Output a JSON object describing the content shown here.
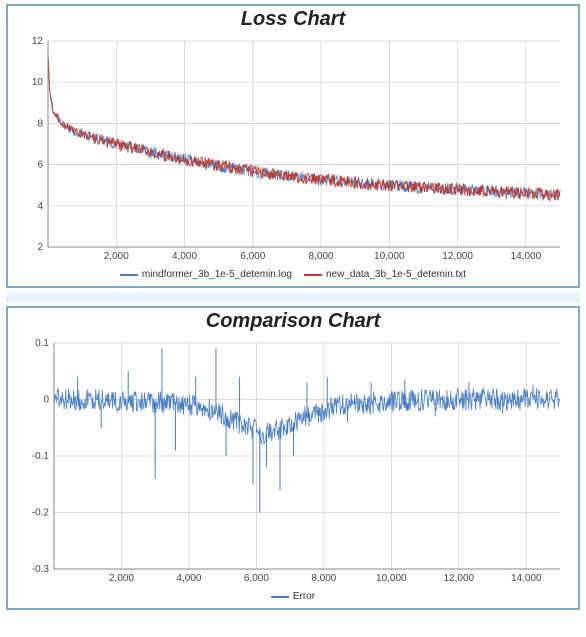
{
  "loss_chart": {
    "type": "line",
    "title": "Loss Chart",
    "title_fontsize": 20,
    "background_color": "#ffffff",
    "border_color": "#7fa8c9",
    "axis_color": "#888888",
    "grid_color": "#cccccc",
    "tick_fontsize": 10,
    "tick_color": "#444444",
    "xlim": [
      0,
      15000
    ],
    "ylim": [
      2,
      12
    ],
    "xtick_step": 2000,
    "ytick_step": 2,
    "xticks": [
      2000,
      4000,
      6000,
      8000,
      10000,
      12000,
      14000
    ],
    "yticks": [
      2,
      4,
      6,
      8,
      10,
      12
    ],
    "line_width": 0.8,
    "noise_amplitude": 0.3,
    "series": [
      {
        "name": "mindformer_3b_1e-5_detemin.log",
        "color": "#4a7fc2",
        "curve": [
          [
            0,
            11.5
          ],
          [
            50,
            9.6
          ],
          [
            150,
            8.6
          ],
          [
            400,
            8.0
          ],
          [
            800,
            7.6
          ],
          [
            1500,
            7.2
          ],
          [
            2500,
            6.8
          ],
          [
            3500,
            6.4
          ],
          [
            4500,
            6.1
          ],
          [
            5500,
            5.8
          ],
          [
            6500,
            5.55
          ],
          [
            7500,
            5.35
          ],
          [
            8500,
            5.2
          ],
          [
            9500,
            5.05
          ],
          [
            10500,
            4.95
          ],
          [
            11500,
            4.85
          ],
          [
            12500,
            4.75
          ],
          [
            13500,
            4.65
          ],
          [
            14500,
            4.55
          ],
          [
            15000,
            4.5
          ]
        ]
      },
      {
        "name": "new_data_3b_1e-5_detemin.txt",
        "color": "#c0392b",
        "curve": [
          [
            0,
            11.5
          ],
          [
            50,
            9.6
          ],
          [
            150,
            8.6
          ],
          [
            400,
            8.0
          ],
          [
            800,
            7.6
          ],
          [
            1500,
            7.2
          ],
          [
            2500,
            6.8
          ],
          [
            3500,
            6.4
          ],
          [
            4500,
            6.1
          ],
          [
            5500,
            5.8
          ],
          [
            6500,
            5.55
          ],
          [
            7500,
            5.35
          ],
          [
            8500,
            5.2
          ],
          [
            9500,
            5.05
          ],
          [
            10500,
            4.95
          ],
          [
            11500,
            4.85
          ],
          [
            12500,
            4.75
          ],
          [
            13500,
            4.65
          ],
          [
            14500,
            4.55
          ],
          [
            15000,
            4.5
          ]
        ]
      }
    ]
  },
  "comparison_chart": {
    "type": "line",
    "title": "Comparison Chart",
    "title_fontsize": 20,
    "background_color": "#ffffff",
    "border_color": "#7fa8c9",
    "axis_color": "#888888",
    "grid_color": "#cccccc",
    "tick_fontsize": 10,
    "tick_color": "#444444",
    "xlim": [
      0,
      15000
    ],
    "ylim": [
      -0.3,
      0.1
    ],
    "xtick_step": 2000,
    "ytick_step": 0.1,
    "xticks": [
      2000,
      4000,
      6000,
      8000,
      10000,
      12000,
      14000
    ],
    "yticks": [
      -0.3,
      -0.2,
      -0.1,
      0,
      0.1
    ],
    "line_width": 0.8,
    "noise_amplitude": 0.02,
    "spike_amplitude": 0.07,
    "series": [
      {
        "name": "Error",
        "color": "#4a7fc2",
        "curve": [
          [
            0,
            0.0
          ],
          [
            1000,
            0.0
          ],
          [
            2000,
            -0.005
          ],
          [
            3000,
            -0.005
          ],
          [
            4000,
            -0.01
          ],
          [
            4800,
            -0.02
          ],
          [
            5300,
            -0.035
          ],
          [
            5800,
            -0.05
          ],
          [
            6200,
            -0.06
          ],
          [
            6600,
            -0.055
          ],
          [
            7000,
            -0.045
          ],
          [
            7500,
            -0.03
          ],
          [
            8000,
            -0.02
          ],
          [
            8500,
            -0.01
          ],
          [
            9500,
            -0.005
          ],
          [
            11000,
            0.0
          ],
          [
            13000,
            0.0
          ],
          [
            15000,
            0.0
          ]
        ],
        "spikes": [
          [
            700,
            0.04
          ],
          [
            1400,
            -0.05
          ],
          [
            2200,
            0.05
          ],
          [
            3000,
            -0.14
          ],
          [
            3200,
            0.09
          ],
          [
            3600,
            -0.09
          ],
          [
            4200,
            0.04
          ],
          [
            4800,
            0.09
          ],
          [
            5100,
            -0.1
          ],
          [
            5500,
            0.04
          ],
          [
            5900,
            -0.15
          ],
          [
            6100,
            -0.2
          ],
          [
            6300,
            -0.12
          ],
          [
            6700,
            -0.16
          ],
          [
            7100,
            -0.1
          ],
          [
            7500,
            0.03
          ],
          [
            8100,
            0.04
          ],
          [
            8700,
            -0.04
          ],
          [
            9400,
            0.03
          ],
          [
            10400,
            0.035
          ],
          [
            11300,
            -0.03
          ],
          [
            12300,
            0.03
          ],
          [
            13300,
            -0.025
          ],
          [
            14200,
            0.025
          ]
        ]
      }
    ]
  }
}
